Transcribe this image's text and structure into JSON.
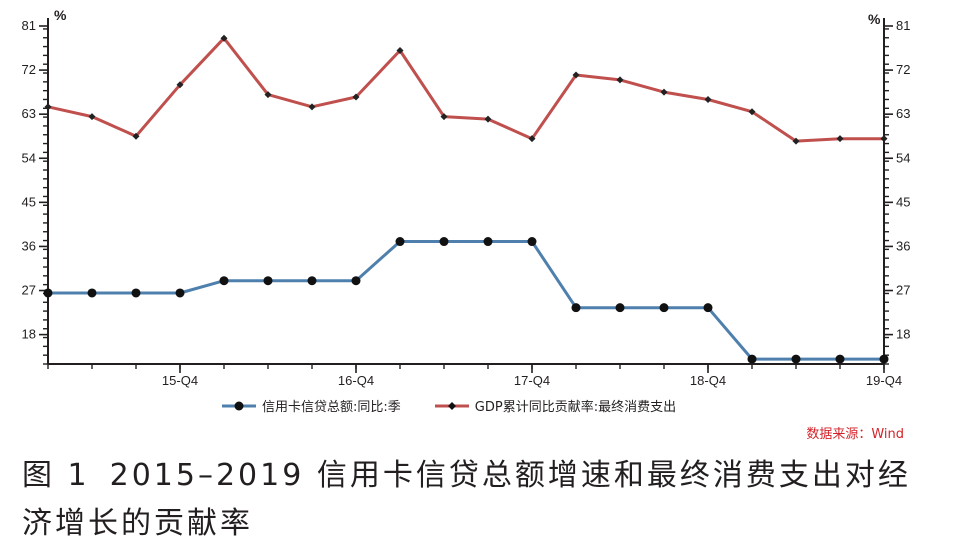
{
  "chart_data": {
    "type": "line",
    "y_unit_left": "%",
    "y_unit_right": "%",
    "yticks": [
      18,
      27,
      36,
      45,
      54,
      63,
      72,
      81
    ],
    "ylim": [
      12,
      81
    ],
    "xticks": [
      "15-Q4",
      "16-Q4",
      "17-Q4",
      "18-Q4",
      "19-Q4"
    ],
    "xtick_positions": [
      3,
      7,
      11,
      15,
      19
    ],
    "x_count": 20,
    "grid": false,
    "legend_position": "bottom",
    "series": [
      {
        "name": "信用卡信贷总额:同比:季",
        "color": "#4f80ad",
        "marker": "circle",
        "values": [
          26.5,
          26.5,
          26.5,
          26.5,
          29,
          29,
          29,
          29,
          37,
          37,
          37,
          37,
          23.5,
          23.5,
          23.5,
          23.5,
          13,
          13,
          13,
          13
        ]
      },
      {
        "name": "GDP累计同比贡献率:最终消费支出",
        "color": "#c0504d",
        "marker": "diamond",
        "values": [
          64.5,
          62.5,
          58.5,
          69,
          78.5,
          67,
          64.5,
          66.5,
          76,
          62.5,
          62,
          58,
          71,
          70,
          67.5,
          66,
          63.5,
          57.5,
          58,
          58
        ]
      }
    ]
  },
  "source": "数据来源：Wind",
  "caption": {
    "number": "图 1",
    "text": "2015–2019 信用卡信贷总额增速和最终消费支出对经济增长的贡献率"
  }
}
